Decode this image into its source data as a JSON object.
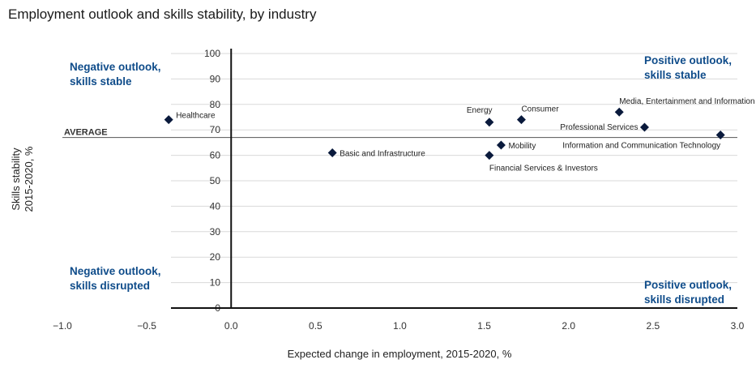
{
  "title": "Employment outlook and skills stability, by industry",
  "colors": {
    "marker": "#0a1a3c",
    "quadrant_text": "#0f4c8a",
    "grid": "#d9d9d9",
    "axis": "#111111"
  },
  "chart_data": {
    "type": "scatter",
    "xlabel": "Expected change in employment, 2015-2020, %",
    "ylabel_lines": [
      "Skills stability",
      "2015-2020, %"
    ],
    "xlim": [
      -1.0,
      3.0
    ],
    "ylim": [
      0,
      100
    ],
    "x_ticks": [
      "−1.0",
      "−0.5",
      "0.0",
      "0.5",
      "1.0",
      "1.5",
      "2.0",
      "2.5",
      "3.0"
    ],
    "x_tick_values": [
      -1.0,
      -0.5,
      0.0,
      0.5,
      1.0,
      1.5,
      2.0,
      2.5,
      3.0
    ],
    "y_ticks": [
      "0",
      "10",
      "20",
      "30",
      "40",
      "50",
      "60",
      "70",
      "80",
      "90",
      "100"
    ],
    "y_tick_values": [
      0,
      10,
      20,
      30,
      40,
      50,
      60,
      70,
      80,
      90,
      100
    ],
    "grid": true,
    "average": {
      "label": "AVERAGE",
      "y": 67
    },
    "quadrants": {
      "top_left": [
        "Negative outlook,",
        "skills stable"
      ],
      "top_right": [
        "Positive outlook,",
        "skills stable"
      ],
      "bottom_left": [
        "Negative outlook,",
        "skills disrupted"
      ],
      "bottom_right": [
        "Positive outlook,",
        "skills disrupted"
      ]
    },
    "points": [
      {
        "label": "Healthcare",
        "x": -0.37,
        "y": 74,
        "label_pos": "right-up"
      },
      {
        "label": "Basic and Infrastructure",
        "x": 0.6,
        "y": 61,
        "label_pos": "right"
      },
      {
        "label": "Energy",
        "x": 1.53,
        "y": 73,
        "label_pos": "above-left"
      },
      {
        "label": "Consumer",
        "x": 1.72,
        "y": 74,
        "label_pos": "above-right"
      },
      {
        "label": "Mobility",
        "x": 1.6,
        "y": 64,
        "label_pos": "right"
      },
      {
        "label": "Financial Services & Investors",
        "x": 1.53,
        "y": 60,
        "label_pos": "below"
      },
      {
        "label": "Media, Entertainment and Information",
        "x": 2.3,
        "y": 77,
        "label_pos": "above-right"
      },
      {
        "label": "Professional Services",
        "x": 2.45,
        "y": 71,
        "label_pos": "left"
      },
      {
        "label": "Information and Communication Technology",
        "x": 2.9,
        "y": 68,
        "label_pos": "below-left"
      }
    ]
  }
}
